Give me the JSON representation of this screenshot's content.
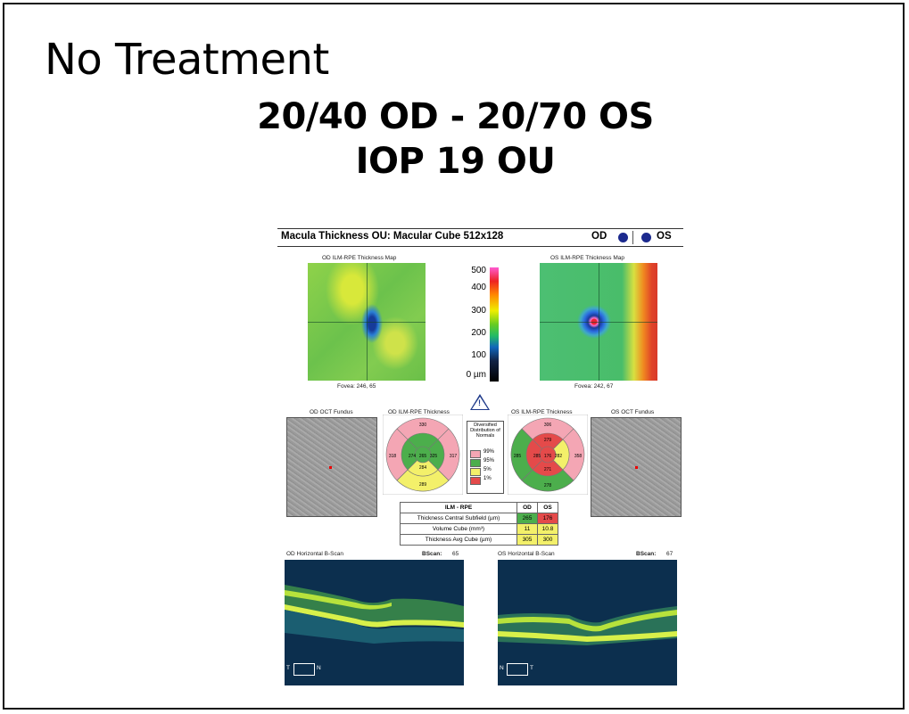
{
  "slide": {
    "title": "No Treatment",
    "line1": "20/40 OD - 20/70 OS",
    "line2": "IOP 19 OU"
  },
  "report": {
    "header_title": "Macula Thickness OU: Macular Cube 512x128",
    "od_label": "OD",
    "os_label": "OS",
    "od_map_title": "OD ILM-RPE Thickness Map",
    "os_map_title": "OS ILM-RPE Thickness Map",
    "od_fovea": "Fovea: 246, 65",
    "os_fovea": "Fovea: 242, 67",
    "colorbar_labels": [
      "500",
      "400",
      "300",
      "200",
      "100",
      "0 µm"
    ],
    "od_fundus_title": "OD OCT Fundus",
    "os_fundus_title": "OS OCT Fundus",
    "od_etdrs_title": "OD ILM-RPE Thickness",
    "os_etdrs_title": "OS ILM-RPE Thickness",
    "legend_title": "Diversified Distribution of Normals",
    "legend_items": [
      "99%",
      "95%",
      "5%",
      "1%"
    ],
    "od_etdrs": {
      "outer_sup": "330",
      "inner_sup": "",
      "outer_nas": "317",
      "inner_nas": "325",
      "center": "265",
      "inner_temp": "274",
      "outer_temp": "318",
      "inner_inf": "284",
      "outer_inf": "289"
    },
    "os_etdrs": {
      "outer_sup": "306",
      "inner_sup": "279",
      "outer_nas": "358",
      "inner_nas": "282",
      "center": "176",
      "inner_temp": "285",
      "outer_temp": "285",
      "inner_inf": "271",
      "outer_inf": "278"
    },
    "table": {
      "headers": [
        "ILM - RPE",
        "OD",
        "OS"
      ],
      "rows": [
        [
          "Thickness Central Subfield (µm)",
          "265",
          "176"
        ],
        [
          "Volume Cube (mm³)",
          "11",
          "10.8"
        ],
        [
          "Thickness Avg Cube (µm)",
          "305",
          "300"
        ]
      ]
    },
    "od_bscan_title": "OD Horizontal B-Scan",
    "os_bscan_title": "OS Horizontal B-Scan",
    "bscan_label": "BScan:",
    "od_bscan_num": "65",
    "os_bscan_num": "67",
    "od_orient_left": "T",
    "od_orient_right": "N",
    "os_orient_left": "N",
    "os_orient_right": "T"
  },
  "colors": {
    "header_dot": "#1c2a8e",
    "normal_green": "#4cae4c",
    "borderline_yellow": "#f3f06a",
    "abnormal_red": "#e44a4a",
    "high_pink": "#f4a6b4"
  }
}
